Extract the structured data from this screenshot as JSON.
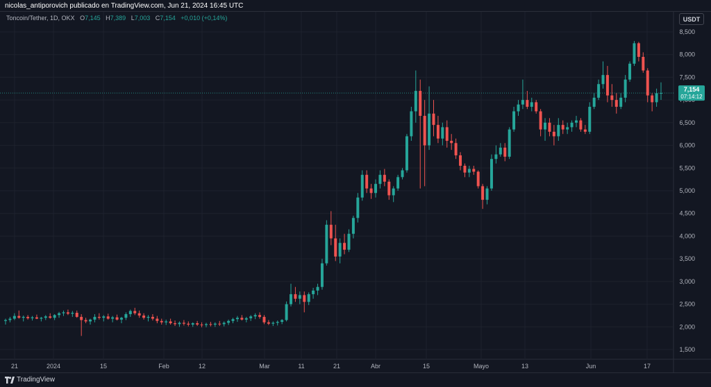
{
  "header": {
    "attribution": "nicolas_antiporovich publicado en TradingView.com, Jun 21, 2024 16:45 UTC"
  },
  "legend": {
    "symbol": "Toncoin/Tether, 1D, OKX",
    "open_key": "O",
    "open": "7,145",
    "high_key": "H",
    "high": "7,389",
    "low_key": "L",
    "low": "7,003",
    "close_key": "C",
    "close": "7,154",
    "change": "+0,010 (+0,14%)"
  },
  "currency_button": "USDT",
  "price_badge": {
    "price": "7,154",
    "countdown": "07:14:12"
  },
  "footer": {
    "brand": "TradingView"
  },
  "colors": {
    "background": "#131722",
    "grid": "#1e222d",
    "up": "#26a69a",
    "down": "#ef5350",
    "text": "#b2b5be"
  },
  "chart_data": {
    "type": "candlestick",
    "symbol": "Toncoin/Tether",
    "interval": "1D",
    "exchange": "OKX",
    "ylim": [
      1.25,
      8.75
    ],
    "y_axis": {
      "position": "right",
      "ticks": [
        "1,500",
        "2,000",
        "2,500",
        "3,000",
        "3,500",
        "4,000",
        "4,500",
        "5,000",
        "5,500",
        "6,000",
        "6,500",
        "7,000",
        "7,500",
        "8,000",
        "8,500"
      ]
    },
    "x_labels": [
      "21",
      "2024",
      "15",
      "Feb",
      "12",
      "Mar",
      "11",
      "21",
      "Abr",
      "15",
      "Mayo",
      "13",
      "Jun",
      "17"
    ],
    "last_price": 7.154,
    "grid": true,
    "candles": [
      {
        "o": 2.13,
        "h": 2.18,
        "l": 2.05,
        "c": 2.15
      },
      {
        "o": 2.15,
        "h": 2.22,
        "l": 2.1,
        "c": 2.18
      },
      {
        "o": 2.18,
        "h": 2.3,
        "l": 2.15,
        "c": 2.24
      },
      {
        "o": 2.24,
        "h": 2.36,
        "l": 2.18,
        "c": 2.2
      },
      {
        "o": 2.2,
        "h": 2.25,
        "l": 2.12,
        "c": 2.22
      },
      {
        "o": 2.22,
        "h": 2.26,
        "l": 2.16,
        "c": 2.19
      },
      {
        "o": 2.19,
        "h": 2.24,
        "l": 2.14,
        "c": 2.21
      },
      {
        "o": 2.21,
        "h": 2.27,
        "l": 2.17,
        "c": 2.18
      },
      {
        "o": 2.18,
        "h": 2.22,
        "l": 2.12,
        "c": 2.2
      },
      {
        "o": 2.2,
        "h": 2.26,
        "l": 2.15,
        "c": 2.23
      },
      {
        "o": 2.23,
        "h": 2.3,
        "l": 2.18,
        "c": 2.2
      },
      {
        "o": 2.2,
        "h": 2.28,
        "l": 2.15,
        "c": 2.26
      },
      {
        "o": 2.26,
        "h": 2.33,
        "l": 2.2,
        "c": 2.3
      },
      {
        "o": 2.3,
        "h": 2.36,
        "l": 2.24,
        "c": 2.32
      },
      {
        "o": 2.32,
        "h": 2.38,
        "l": 2.26,
        "c": 2.29
      },
      {
        "o": 2.29,
        "h": 2.35,
        "l": 2.22,
        "c": 2.31
      },
      {
        "o": 2.31,
        "h": 2.36,
        "l": 2.2,
        "c": 2.22
      },
      {
        "o": 2.22,
        "h": 2.28,
        "l": 1.8,
        "c": 2.15
      },
      {
        "o": 2.15,
        "h": 2.2,
        "l": 2.08,
        "c": 2.12
      },
      {
        "o": 2.12,
        "h": 2.18,
        "l": 2.05,
        "c": 2.16
      },
      {
        "o": 2.16,
        "h": 2.28,
        "l": 2.1,
        "c": 2.22
      },
      {
        "o": 2.22,
        "h": 2.3,
        "l": 2.16,
        "c": 2.2
      },
      {
        "o": 2.2,
        "h": 2.26,
        "l": 2.12,
        "c": 2.23
      },
      {
        "o": 2.23,
        "h": 2.29,
        "l": 2.16,
        "c": 2.18
      },
      {
        "o": 2.18,
        "h": 2.24,
        "l": 2.1,
        "c": 2.21
      },
      {
        "o": 2.21,
        "h": 2.27,
        "l": 2.14,
        "c": 2.16
      },
      {
        "o": 2.16,
        "h": 2.22,
        "l": 2.08,
        "c": 2.2
      },
      {
        "o": 2.2,
        "h": 2.32,
        "l": 2.15,
        "c": 2.28
      },
      {
        "o": 2.28,
        "h": 2.38,
        "l": 2.22,
        "c": 2.35
      },
      {
        "o": 2.35,
        "h": 2.42,
        "l": 2.26,
        "c": 2.3
      },
      {
        "o": 2.3,
        "h": 2.36,
        "l": 2.2,
        "c": 2.25
      },
      {
        "o": 2.25,
        "h": 2.3,
        "l": 2.16,
        "c": 2.2
      },
      {
        "o": 2.2,
        "h": 2.26,
        "l": 2.12,
        "c": 2.22
      },
      {
        "o": 2.22,
        "h": 2.28,
        "l": 2.14,
        "c": 2.18
      },
      {
        "o": 2.18,
        "h": 2.24,
        "l": 2.08,
        "c": 2.13
      },
      {
        "o": 2.13,
        "h": 2.18,
        "l": 2.05,
        "c": 2.1
      },
      {
        "o": 2.1,
        "h": 2.16,
        "l": 2.04,
        "c": 2.12
      },
      {
        "o": 2.12,
        "h": 2.18,
        "l": 2.05,
        "c": 2.08
      },
      {
        "o": 2.08,
        "h": 2.14,
        "l": 2.02,
        "c": 2.06
      },
      {
        "o": 2.06,
        "h": 2.12,
        "l": 2.0,
        "c": 2.09
      },
      {
        "o": 2.09,
        "h": 2.15,
        "l": 2.03,
        "c": 2.07
      },
      {
        "o": 2.07,
        "h": 2.12,
        "l": 2.01,
        "c": 2.05
      },
      {
        "o": 2.05,
        "h": 2.1,
        "l": 2.0,
        "c": 2.08
      },
      {
        "o": 2.08,
        "h": 2.13,
        "l": 2.02,
        "c": 2.05
      },
      {
        "o": 2.05,
        "h": 2.1,
        "l": 1.99,
        "c": 2.04
      },
      {
        "o": 2.04,
        "h": 2.09,
        "l": 1.99,
        "c": 2.06
      },
      {
        "o": 2.06,
        "h": 2.11,
        "l": 2.01,
        "c": 2.05
      },
      {
        "o": 2.05,
        "h": 2.1,
        "l": 2.0,
        "c": 2.07
      },
      {
        "o": 2.07,
        "h": 2.13,
        "l": 2.02,
        "c": 2.06
      },
      {
        "o": 2.06,
        "h": 2.12,
        "l": 2.01,
        "c": 2.09
      },
      {
        "o": 2.09,
        "h": 2.16,
        "l": 2.04,
        "c": 2.13
      },
      {
        "o": 2.13,
        "h": 2.2,
        "l": 2.08,
        "c": 2.17
      },
      {
        "o": 2.17,
        "h": 2.24,
        "l": 2.11,
        "c": 2.2
      },
      {
        "o": 2.2,
        "h": 2.26,
        "l": 2.14,
        "c": 2.16
      },
      {
        "o": 2.16,
        "h": 2.22,
        "l": 2.1,
        "c": 2.19
      },
      {
        "o": 2.19,
        "h": 2.26,
        "l": 2.13,
        "c": 2.23
      },
      {
        "o": 2.23,
        "h": 2.3,
        "l": 2.17,
        "c": 2.26
      },
      {
        "o": 2.26,
        "h": 2.32,
        "l": 2.18,
        "c": 2.22
      },
      {
        "o": 2.22,
        "h": 2.26,
        "l": 2.06,
        "c": 2.1
      },
      {
        "o": 2.1,
        "h": 2.15,
        "l": 2.04,
        "c": 2.07
      },
      {
        "o": 2.07,
        "h": 2.12,
        "l": 2.02,
        "c": 2.09
      },
      {
        "o": 2.09,
        "h": 2.14,
        "l": 2.03,
        "c": 2.11
      },
      {
        "o": 2.11,
        "h": 2.17,
        "l": 2.06,
        "c": 2.15
      },
      {
        "o": 2.15,
        "h": 2.56,
        "l": 2.12,
        "c": 2.5
      },
      {
        "o": 2.5,
        "h": 2.95,
        "l": 2.45,
        "c": 2.72
      },
      {
        "o": 2.72,
        "h": 2.88,
        "l": 2.55,
        "c": 2.62
      },
      {
        "o": 2.62,
        "h": 2.78,
        "l": 2.5,
        "c": 2.7
      },
      {
        "o": 2.7,
        "h": 2.78,
        "l": 2.32,
        "c": 2.55
      },
      {
        "o": 2.55,
        "h": 2.76,
        "l": 2.48,
        "c": 2.72
      },
      {
        "o": 2.72,
        "h": 2.86,
        "l": 2.62,
        "c": 2.8
      },
      {
        "o": 2.8,
        "h": 2.95,
        "l": 2.7,
        "c": 2.88
      },
      {
        "o": 2.88,
        "h": 3.5,
        "l": 2.82,
        "c": 3.4
      },
      {
        "o": 3.4,
        "h": 4.35,
        "l": 3.35,
        "c": 4.25
      },
      {
        "o": 4.25,
        "h": 4.55,
        "l": 3.8,
        "c": 3.95
      },
      {
        "o": 3.95,
        "h": 4.25,
        "l": 3.45,
        "c": 3.55
      },
      {
        "o": 3.55,
        "h": 3.95,
        "l": 3.4,
        "c": 3.85
      },
      {
        "o": 3.85,
        "h": 4.05,
        "l": 3.6,
        "c": 3.7
      },
      {
        "o": 3.7,
        "h": 4.15,
        "l": 3.65,
        "c": 4.05
      },
      {
        "o": 4.05,
        "h": 4.45,
        "l": 3.95,
        "c": 4.4
      },
      {
        "o": 4.4,
        "h": 4.95,
        "l": 4.3,
        "c": 4.85
      },
      {
        "o": 4.85,
        "h": 5.45,
        "l": 4.78,
        "c": 5.35
      },
      {
        "o": 5.35,
        "h": 5.45,
        "l": 4.95,
        "c": 5.05
      },
      {
        "o": 5.05,
        "h": 5.15,
        "l": 4.82,
        "c": 4.95
      },
      {
        "o": 4.95,
        "h": 5.25,
        "l": 4.85,
        "c": 5.15
      },
      {
        "o": 5.15,
        "h": 5.45,
        "l": 5.05,
        "c": 5.35
      },
      {
        "o": 5.35,
        "h": 5.48,
        "l": 5.1,
        "c": 5.2
      },
      {
        "o": 5.2,
        "h": 5.25,
        "l": 4.8,
        "c": 4.9
      },
      {
        "o": 4.9,
        "h": 5.1,
        "l": 4.75,
        "c": 5.05
      },
      {
        "o": 5.05,
        "h": 5.35,
        "l": 5.0,
        "c": 5.3
      },
      {
        "o": 5.3,
        "h": 5.5,
        "l": 5.25,
        "c": 5.45
      },
      {
        "o": 5.45,
        "h": 6.25,
        "l": 5.4,
        "c": 6.2
      },
      {
        "o": 6.2,
        "h": 6.85,
        "l": 6.1,
        "c": 6.75
      },
      {
        "o": 6.75,
        "h": 7.65,
        "l": 6.5,
        "c": 7.2
      },
      {
        "o": 7.2,
        "h": 7.45,
        "l": 5.05,
        "c": 6.65
      },
      {
        "o": 6.65,
        "h": 7.0,
        "l": 5.1,
        "c": 6.0
      },
      {
        "o": 6.0,
        "h": 7.3,
        "l": 5.9,
        "c": 6.7
      },
      {
        "o": 6.7,
        "h": 7.0,
        "l": 6.2,
        "c": 6.45
      },
      {
        "o": 6.45,
        "h": 6.65,
        "l": 6.05,
        "c": 6.15
      },
      {
        "o": 6.15,
        "h": 6.5,
        "l": 6.0,
        "c": 6.4
      },
      {
        "o": 6.4,
        "h": 6.55,
        "l": 5.95,
        "c": 6.1
      },
      {
        "o": 6.1,
        "h": 6.25,
        "l": 5.9,
        "c": 6.05
      },
      {
        "o": 6.05,
        "h": 6.15,
        "l": 5.7,
        "c": 5.78
      },
      {
        "o": 5.78,
        "h": 5.85,
        "l": 5.45,
        "c": 5.55
      },
      {
        "o": 5.55,
        "h": 5.6,
        "l": 5.3,
        "c": 5.4
      },
      {
        "o": 5.4,
        "h": 5.55,
        "l": 5.3,
        "c": 5.48
      },
      {
        "o": 5.48,
        "h": 5.55,
        "l": 5.35,
        "c": 5.42
      },
      {
        "o": 5.42,
        "h": 5.45,
        "l": 5.05,
        "c": 5.1
      },
      {
        "o": 5.1,
        "h": 5.15,
        "l": 4.6,
        "c": 4.8
      },
      {
        "o": 4.8,
        "h": 5.1,
        "l": 4.7,
        "c": 5.05
      },
      {
        "o": 5.05,
        "h": 5.8,
        "l": 5.0,
        "c": 5.7
      },
      {
        "o": 5.7,
        "h": 6.0,
        "l": 5.6,
        "c": 5.8
      },
      {
        "o": 5.8,
        "h": 6.05,
        "l": 5.75,
        "c": 5.95
      },
      {
        "o": 5.95,
        "h": 6.05,
        "l": 5.65,
        "c": 5.75
      },
      {
        "o": 5.75,
        "h": 6.4,
        "l": 5.7,
        "c": 6.35
      },
      {
        "o": 6.35,
        "h": 6.85,
        "l": 6.3,
        "c": 6.75
      },
      {
        "o": 6.75,
        "h": 7.0,
        "l": 6.65,
        "c": 6.9
      },
      {
        "o": 6.9,
        "h": 7.45,
        "l": 6.8,
        "c": 7.0
      },
      {
        "o": 7.0,
        "h": 7.2,
        "l": 6.8,
        "c": 6.85
      },
      {
        "o": 6.85,
        "h": 7.05,
        "l": 6.75,
        "c": 6.95
      },
      {
        "o": 6.95,
        "h": 7.0,
        "l": 6.7,
        "c": 6.75
      },
      {
        "o": 6.75,
        "h": 6.8,
        "l": 6.2,
        "c": 6.35
      },
      {
        "o": 6.35,
        "h": 6.6,
        "l": 6.1,
        "c": 6.5
      },
      {
        "o": 6.5,
        "h": 6.6,
        "l": 6.2,
        "c": 6.3
      },
      {
        "o": 6.3,
        "h": 6.45,
        "l": 6.0,
        "c": 6.2
      },
      {
        "o": 6.2,
        "h": 6.6,
        "l": 6.1,
        "c": 6.45
      },
      {
        "o": 6.45,
        "h": 6.55,
        "l": 6.25,
        "c": 6.35
      },
      {
        "o": 6.35,
        "h": 6.5,
        "l": 6.25,
        "c": 6.4
      },
      {
        "o": 6.4,
        "h": 6.55,
        "l": 6.3,
        "c": 6.5
      },
      {
        "o": 6.5,
        "h": 6.65,
        "l": 6.4,
        "c": 6.55
      },
      {
        "o": 6.55,
        "h": 6.6,
        "l": 6.3,
        "c": 6.35
      },
      {
        "o": 6.35,
        "h": 6.45,
        "l": 6.25,
        "c": 6.3
      },
      {
        "o": 6.3,
        "h": 6.95,
        "l": 6.25,
        "c": 6.85
      },
      {
        "o": 6.85,
        "h": 7.15,
        "l": 6.8,
        "c": 7.05
      },
      {
        "o": 7.05,
        "h": 7.45,
        "l": 7.0,
        "c": 7.35
      },
      {
        "o": 7.35,
        "h": 7.85,
        "l": 7.25,
        "c": 7.55
      },
      {
        "o": 7.55,
        "h": 7.75,
        "l": 6.95,
        "c": 7.1
      },
      {
        "o": 7.1,
        "h": 7.35,
        "l": 6.85,
        "c": 7.0
      },
      {
        "o": 7.0,
        "h": 7.15,
        "l": 6.7,
        "c": 6.85
      },
      {
        "o": 6.85,
        "h": 7.15,
        "l": 6.8,
        "c": 7.05
      },
      {
        "o": 7.05,
        "h": 7.55,
        "l": 6.95,
        "c": 7.45
      },
      {
        "o": 7.45,
        "h": 7.85,
        "l": 7.4,
        "c": 7.8
      },
      {
        "o": 7.8,
        "h": 8.3,
        "l": 7.75,
        "c": 8.25
      },
      {
        "o": 8.25,
        "h": 8.28,
        "l": 7.85,
        "c": 7.95
      },
      {
        "o": 7.95,
        "h": 8.05,
        "l": 7.6,
        "c": 7.65
      },
      {
        "o": 7.65,
        "h": 7.7,
        "l": 6.95,
        "c": 7.1
      },
      {
        "o": 7.1,
        "h": 7.15,
        "l": 6.75,
        "c": 6.95
      },
      {
        "o": 6.95,
        "h": 7.25,
        "l": 6.85,
        "c": 7.15
      },
      {
        "o": 7.145,
        "h": 7.389,
        "l": 7.003,
        "c": 7.154
      }
    ]
  }
}
